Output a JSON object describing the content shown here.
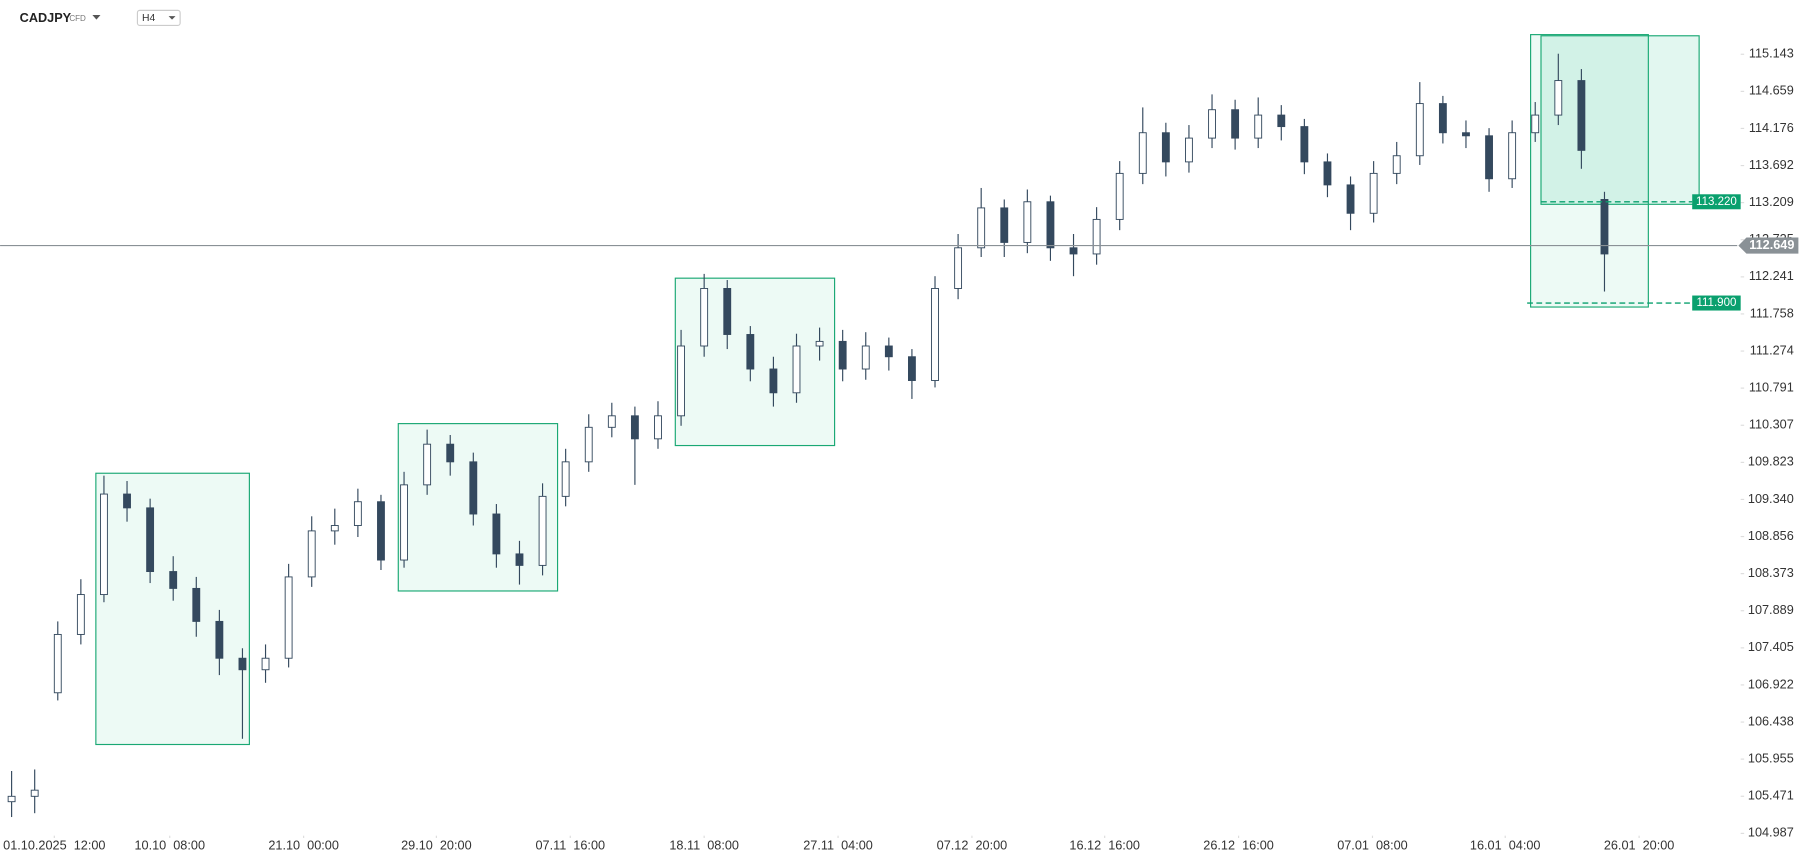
{
  "header": {
    "symbol": "CADJPY",
    "instrument_type": "CFD",
    "timeframe": "H4"
  },
  "chart_data": {
    "type": "candlestick",
    "x": [
      0,
      1,
      2,
      3,
      4,
      5,
      6,
      7,
      8,
      9,
      10,
      11,
      12,
      13,
      14,
      15,
      16,
      17,
      18,
      19,
      20,
      21,
      22,
      23,
      24,
      25,
      26,
      27,
      28,
      29,
      30,
      31,
      32,
      33,
      34,
      35,
      36,
      37,
      38,
      39,
      40,
      41,
      42,
      43,
      44,
      45,
      46,
      47,
      48,
      49,
      50,
      51,
      52,
      53,
      54,
      55,
      56,
      57,
      58,
      59,
      60,
      61,
      62,
      63,
      64,
      65,
      66,
      67,
      68,
      69
    ],
    "open": [
      105.4,
      105.47,
      106.82,
      107.58,
      108.1,
      109.41,
      109.23,
      108.4,
      108.18,
      107.75,
      107.27,
      107.12,
      107.27,
      108.33,
      108.93,
      109.0,
      109.31,
      108.55,
      109.53,
      110.06,
      109.83,
      109.15,
      108.63,
      108.48,
      109.38,
      109.83,
      110.28,
      110.43,
      110.13,
      110.43,
      111.34,
      112.09,
      111.49,
      111.04,
      110.73,
      111.34,
      111.4,
      111.04,
      111.34,
      111.2,
      110.89,
      112.09,
      112.62,
      113.14,
      112.69,
      113.22,
      112.62,
      112.54,
      112.99,
      113.59,
      114.12,
      113.74,
      114.05,
      114.42,
      114.05,
      114.35,
      114.2,
      113.74,
      113.44,
      113.07,
      113.59,
      113.82,
      114.5,
      114.12,
      114.08,
      113.52,
      114.12,
      114.35,
      114.8,
      113.25
    ],
    "high": [
      105.8,
      105.82,
      107.75,
      108.3,
      109.65,
      109.58,
      109.35,
      108.6,
      108.33,
      107.9,
      107.4,
      107.45,
      108.5,
      109.12,
      109.22,
      109.48,
      109.4,
      109.7,
      110.25,
      110.18,
      109.95,
      109.28,
      108.8,
      109.55,
      110.0,
      110.45,
      110.6,
      110.55,
      110.62,
      111.55,
      112.28,
      112.2,
      111.6,
      111.2,
      111.5,
      111.58,
      111.55,
      111.52,
      111.45,
      111.3,
      112.25,
      112.8,
      113.4,
      113.25,
      113.38,
      113.3,
      112.8,
      113.15,
      113.75,
      114.45,
      114.25,
      114.22,
      114.62,
      114.55,
      114.58,
      114.48,
      114.3,
      113.85,
      113.55,
      113.75,
      114.0,
      114.78,
      114.6,
      114.28,
      114.18,
      114.28,
      114.52,
      115.15,
      114.95,
      113.35
    ],
    "low": [
      105.2,
      105.25,
      106.72,
      107.45,
      108.0,
      109.05,
      108.25,
      108.02,
      107.55,
      107.05,
      106.22,
      106.95,
      107.15,
      108.2,
      108.75,
      108.85,
      108.42,
      108.45,
      109.4,
      109.65,
      109.0,
      108.45,
      108.23,
      108.35,
      109.25,
      109.7,
      110.15,
      109.53,
      110.0,
      110.3,
      111.2,
      111.3,
      110.88,
      110.55,
      110.6,
      111.15,
      110.88,
      110.9,
      111.02,
      110.65,
      110.8,
      111.95,
      112.5,
      112.5,
      112.55,
      112.45,
      112.25,
      112.4,
      112.85,
      113.45,
      113.55,
      113.6,
      113.92,
      113.9,
      113.92,
      114.02,
      113.58,
      113.28,
      112.85,
      112.95,
      113.45,
      113.7,
      113.98,
      113.92,
      113.35,
      113.4,
      114.0,
      114.22,
      113.65,
      112.05
    ],
    "close": [
      105.47,
      105.55,
      107.58,
      108.1,
      109.41,
      109.23,
      108.4,
      108.18,
      107.75,
      107.27,
      107.12,
      107.27,
      108.33,
      108.93,
      109.0,
      109.31,
      108.55,
      109.53,
      110.06,
      109.83,
      109.15,
      108.63,
      108.48,
      109.38,
      109.83,
      110.28,
      110.43,
      110.13,
      110.43,
      111.34,
      112.09,
      111.49,
      111.04,
      110.73,
      111.34,
      111.4,
      111.04,
      111.34,
      111.2,
      110.89,
      112.09,
      112.62,
      113.14,
      112.69,
      113.22,
      112.62,
      112.54,
      112.99,
      113.59,
      114.12,
      113.74,
      114.05,
      114.42,
      114.05,
      114.35,
      114.2,
      113.74,
      113.44,
      113.07,
      113.59,
      113.82,
      114.5,
      114.12,
      114.08,
      113.52,
      114.12,
      114.35,
      114.8,
      113.89,
      112.54
    ],
    "up_color": "#ffffff",
    "down_color": "#34495e",
    "wick_color": "#34495e",
    "xlim": [
      -0.5,
      75.5
    ],
    "xticks": [
      {
        "value": 1.85,
        "label": "01.10.2025  12:00"
      },
      {
        "value": 6.85,
        "label": "10.10  08:00"
      },
      {
        "value": 12.65,
        "label": "21.10  00:00"
      },
      {
        "value": 18.4,
        "label": "29.10  20:00"
      },
      {
        "value": 24.2,
        "label": "07.11  16:00"
      },
      {
        "value": 30,
        "label": "18.11  08:00"
      },
      {
        "value": 35.8,
        "label": "27.11  04:00"
      },
      {
        "value": 41.6,
        "label": "07.12  20:00"
      },
      {
        "value": 47.35,
        "label": "16.12  16:00"
      },
      {
        "value": 53.15,
        "label": "26.12  16:00"
      },
      {
        "value": 58.95,
        "label": "07.01  08:00"
      },
      {
        "value": 64.7,
        "label": "16.01  04:00"
      },
      {
        "value": 70.5,
        "label": "26.01  20:00"
      }
    ],
    "ylim": [
      104.987,
      115.474
    ],
    "yticks": [
      115.143,
      114.659,
      114.176,
      113.692,
      113.209,
      112.725,
      112.241,
      111.758,
      111.274,
      110.791,
      110.307,
      109.823,
      {
        "value": 109.34,
        "label": "109.340"
      },
      108.856,
      108.373,
      107.889,
      107.405,
      106.922,
      106.438,
      105.955,
      105.471,
      104.987
    ],
    "current_price": {
      "value": 112.649,
      "label": "112.649",
      "color": "#8a9196"
    },
    "levels": [
      {
        "value": 113.22,
        "label": "113.220",
        "color": "#0aa06e"
      },
      {
        "value": 111.9,
        "label": "111.900",
        "color": "#0aa06e"
      }
    ]
  }
}
